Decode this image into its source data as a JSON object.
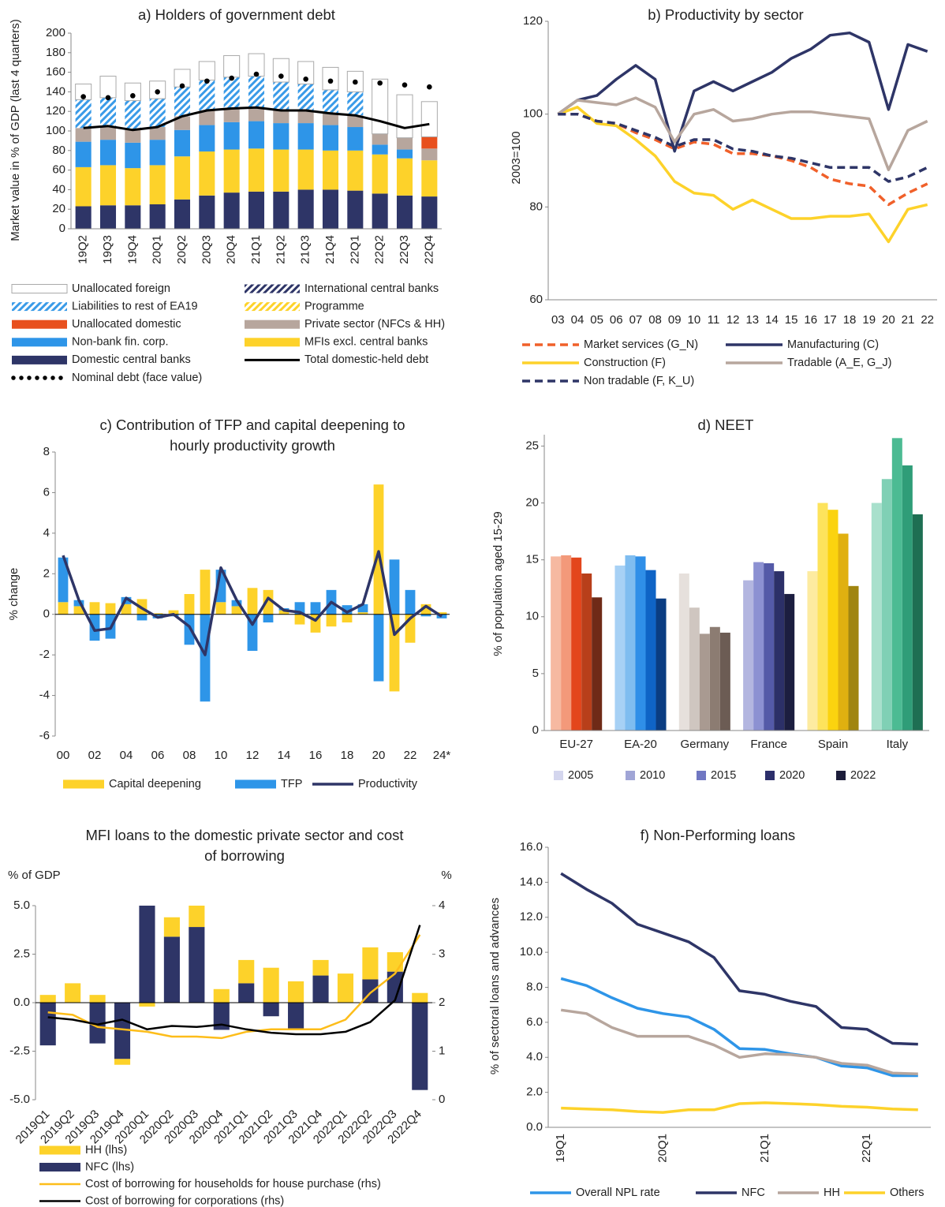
{
  "chart_data": [
    {
      "type": "bar",
      "title": "a) Holders of government debt",
      "ylabel": "Market value in % of GDP (last 4 quarters)",
      "categories": [
        "19Q2",
        "19Q3",
        "19Q4",
        "20Q1",
        "20Q2",
        "20Q3",
        "20Q4",
        "21Q1",
        "21Q2",
        "21Q3",
        "21Q4",
        "22Q1",
        "22Q2",
        "22Q3",
        "22Q4"
      ],
      "ylim": [
        0,
        200
      ],
      "yticks": [
        0,
        20,
        40,
        60,
        80,
        100,
        120,
        140,
        160,
        180,
        200
      ],
      "series": [
        {
          "name": "Unallocated foreign",
          "kind": "bar",
          "color": "#ffffff",
          "values": [
            16,
            22,
            18,
            18,
            18,
            19,
            22,
            23,
            24,
            23,
            23,
            21,
            56,
            44,
            36
          ]
        },
        {
          "name": "International central banks",
          "kind": "bar",
          "color": "#2e3567",
          "pattern": true,
          "values": [
            0,
            0,
            0,
            0,
            0,
            0,
            0,
            0,
            0,
            0,
            0,
            0,
            0,
            0,
            0
          ]
        },
        {
          "name": "Liabilities to rest of EA19",
          "kind": "bar",
          "color": "#3a9be8",
          "pattern": true,
          "values": [
            29,
            29,
            30,
            29,
            30,
            31,
            32,
            32,
            29,
            27,
            24,
            24,
            0,
            0,
            0
          ]
        },
        {
          "name": "Programme",
          "kind": "bar",
          "color": "#fdd22a",
          "pattern": true,
          "values": [
            0,
            0,
            0,
            0,
            0,
            0,
            0,
            0,
            0,
            0,
            0,
            0,
            0,
            0,
            0
          ]
        },
        {
          "name": "Unallocated domestic",
          "kind": "bar",
          "color": "#e8501e",
          "values": [
            0,
            0,
            0,
            0,
            0,
            0,
            0,
            0,
            0,
            0,
            0,
            0,
            0,
            0,
            12
          ]
        },
        {
          "name": "Private sector (NFCs & HH)",
          "kind": "bar",
          "color": "#b7a69d",
          "values": [
            14,
            14,
            13,
            13,
            14,
            15,
            14,
            14,
            13,
            13,
            12,
            12,
            11,
            12,
            12
          ]
        },
        {
          "name": "Non-bank fin. corp.",
          "kind": "bar",
          "color": "#2e95e8",
          "values": [
            26,
            26,
            26,
            26,
            27,
            27,
            28,
            28,
            27,
            27,
            26,
            24,
            10,
            9,
            0
          ]
        },
        {
          "name": "MFIs excl. central banks",
          "kind": "bar",
          "color": "#fdd22a",
          "values": [
            40,
            41,
            38,
            40,
            44,
            45,
            44,
            44,
            43,
            41,
            40,
            41,
            40,
            38,
            37
          ]
        },
        {
          "name": "Domestic central banks",
          "kind": "bar",
          "color": "#2e3567",
          "values": [
            23,
            24,
            24,
            25,
            30,
            34,
            37,
            38,
            38,
            40,
            40,
            39,
            36,
            34,
            33
          ]
        },
        {
          "name": "Total domestic-held debt",
          "kind": "line",
          "color": "#000000",
          "values": [
            103,
            105,
            101,
            104,
            115,
            121,
            123,
            124,
            121,
            121,
            118,
            116,
            110,
            103,
            107
          ]
        },
        {
          "name": "Nominal debt (face value)",
          "kind": "dots",
          "color": "#000000",
          "values": [
            135,
            134,
            136,
            140,
            146,
            151,
            154,
            158,
            156,
            153,
            151,
            150,
            149,
            147,
            145
          ]
        }
      ]
    },
    {
      "type": "line",
      "title": "b) Productivity by sector",
      "ylabel": "2003=100",
      "categories": [
        "03",
        "04",
        "05",
        "06",
        "07",
        "08",
        "09",
        "10",
        "11",
        "12",
        "13",
        "14",
        "15",
        "16",
        "17",
        "18",
        "19",
        "20",
        "21",
        "22"
      ],
      "ylim": [
        60,
        120
      ],
      "yticks": [
        60,
        80,
        100,
        120
      ],
      "series": [
        {
          "name": "Market services (G_N)",
          "color": "#f0602a",
          "dash": true,
          "values": [
            100,
            100,
            98.5,
            98,
            96,
            94.5,
            92.5,
            94,
            93.5,
            91.5,
            91.5,
            91,
            90,
            88.5,
            86,
            85,
            84.5,
            80.5,
            83,
            85
          ]
        },
        {
          "name": "Manufacturing (C)",
          "color": "#2e3567",
          "values": [
            100,
            103,
            104,
            107.5,
            110.5,
            107.5,
            92,
            105,
            107,
            105,
            107,
            109,
            112,
            114,
            117,
            117.5,
            115.5,
            101,
            115,
            113.5
          ]
        },
        {
          "name": "Construction (F)",
          "color": "#fdd22a",
          "values": [
            100,
            101.5,
            98,
            97.5,
            94.5,
            91,
            85.5,
            83,
            82.5,
            79.5,
            81.5,
            79.5,
            77.5,
            77.5,
            78,
            78,
            78.5,
            72.5,
            79.5,
            80.5
          ]
        },
        {
          "name": "Tradable (A_E, G_J)",
          "color": "#b7a69d",
          "values": [
            100,
            103,
            102.5,
            102,
            103.5,
            101.5,
            94,
            100,
            101,
            98.5,
            99,
            100,
            100.5,
            100.5,
            100,
            99.5,
            99,
            88,
            96.5,
            98.5
          ]
        },
        {
          "name": "Non tradable (F, K_U)",
          "color": "#2e3567",
          "dash": true,
          "values": [
            100,
            100,
            98.5,
            98,
            96.5,
            95,
            93,
            94.5,
            94.5,
            92.5,
            92,
            91,
            90.5,
            89.5,
            88.5,
            88.5,
            88.5,
            85.5,
            86.5,
            88.5
          ]
        }
      ]
    },
    {
      "type": "bar",
      "title": "c) Contribution of TFP and capital deepening to hourly productivity growth",
      "ylabel": "% change",
      "categories": [
        "00",
        null,
        "02",
        null,
        "04",
        null,
        "06",
        null,
        "08",
        null,
        "10",
        null,
        "12",
        null,
        "14",
        null,
        "16",
        null,
        "18",
        null,
        "20",
        null,
        "22",
        null,
        "24*"
      ],
      "ylim": [
        -6,
        8
      ],
      "yticks": [
        -6,
        -4,
        -2,
        0,
        2,
        4,
        6,
        8
      ],
      "series": [
        {
          "name": "Capital deepening",
          "kind": "bar",
          "color": "#fdd22a",
          "values": [
            0.6,
            0.4,
            0.6,
            0.55,
            0.5,
            0.75,
            0.05,
            0.2,
            1.0,
            2.2,
            0.6,
            0.4,
            1.3,
            1.2,
            0.2,
            -0.5,
            -0.9,
            -0.6,
            -0.4,
            0.1,
            6.4,
            -3.8,
            -1.4,
            0.5,
            0.1
          ]
        },
        {
          "name": "TFP",
          "kind": "bar",
          "color": "#2e95e8",
          "values": [
            2.2,
            0.3,
            -1.3,
            -1.2,
            0.35,
            -0.3,
            -0.2,
            -0.1,
            -1.5,
            -4.3,
            1.6,
            0.3,
            -1.8,
            -0.4,
            0.1,
            0.6,
            0.6,
            1.2,
            0.45,
            0.4,
            -3.3,
            2.7,
            1.2,
            -0.1,
            -0.2
          ]
        },
        {
          "name": "Productivity",
          "kind": "line",
          "color": "#2e3567",
          "values": [
            2.9,
            0.7,
            -0.8,
            -0.7,
            0.8,
            0.3,
            -0.15,
            0.0,
            -0.6,
            -2.0,
            2.3,
            0.7,
            -0.5,
            0.8,
            0.2,
            0.1,
            -0.3,
            0.6,
            0.1,
            0.5,
            3.1,
            -1.0,
            -0.2,
            0.4,
            -0.1
          ]
        }
      ]
    },
    {
      "type": "grouped_bar",
      "title": "d) NEET",
      "ylabel": "% of population aged 15-29",
      "categories": [
        "EU-27",
        "EA-20",
        "Germany",
        "France",
        "Spain",
        "Italy"
      ],
      "ylim": [
        0,
        26
      ],
      "yticks": [
        0,
        5,
        10,
        15,
        20,
        25
      ],
      "series": [
        {
          "name": "2005",
          "color": "#d4d6ee",
          "colors": [
            "#f6b9a1",
            "#a7d1f5",
            "#e6e0dc",
            "#b3b6e0",
            "#fdeba0",
            "#a8e0cc"
          ],
          "values": [
            15.3,
            14.5,
            13.8,
            13.2,
            14.0,
            20.0
          ]
        },
        {
          "name": "2010",
          "color": "#a0a5d6",
          "colors": [
            "#f3997a",
            "#7fbdf0",
            "#cfc6c0",
            "#8c91d2",
            "#fde35c",
            "#80d0b5"
          ],
          "values": [
            15.4,
            15.4,
            10.8,
            14.8,
            20.0,
            22.1
          ]
        },
        {
          "name": "2015",
          "color": "#7077c2",
          "colors": [
            "#e3461c",
            "#2f8fe8",
            "#a99a91",
            "#545aa8",
            "#fbd30f",
            "#4cbb93"
          ],
          "values": [
            15.2,
            15.3,
            8.5,
            14.7,
            19.4,
            25.7
          ]
        },
        {
          "name": "2020",
          "color": "#2c2f6b",
          "colors": [
            "#b83f1a",
            "#0f64c6",
            "#8c7c72",
            "#2c3068",
            "#e0b010",
            "#2f9d78"
          ],
          "values": [
            13.8,
            14.1,
            9.1,
            14.0,
            17.3,
            23.3
          ]
        },
        {
          "name": "2022",
          "color": "#1c1d3a",
          "colors": [
            "#6f2a17",
            "#0a3d82",
            "#6c5c54",
            "#1c1e40",
            "#a08510",
            "#1e6f53"
          ],
          "values": [
            11.7,
            11.6,
            8.6,
            12.0,
            12.7,
            19.0
          ]
        }
      ]
    },
    {
      "type": "bar",
      "title": "MFI loans to the domestic private sector and cost of borrowing",
      "ylabel": "% of GDP",
      "y2label": "%",
      "categories": [
        "2019Q1",
        "2019Q2",
        "2019Q3",
        "2019Q4",
        "2020Q1",
        "2020Q2",
        "2020Q3",
        "2020Q4",
        "2021Q1",
        "2021Q2",
        "2021Q3",
        "2021Q4",
        "2022Q1",
        "2022Q2",
        "2022Q3",
        "2022Q4"
      ],
      "ylim": [
        -5,
        5
      ],
      "yticks": [
        {
          "value": -5,
          "label": "-5.0"
        },
        {
          "value": -2.5,
          "label": "-2.5"
        },
        {
          "value": 0,
          "label": "0.0"
        },
        {
          "value": 2.5,
          "label": "2.5"
        },
        {
          "value": 5,
          "label": "5.0"
        }
      ],
      "y2lim": [
        0,
        4
      ],
      "y2ticks": [
        0,
        1,
        2,
        3,
        4
      ],
      "series": [
        {
          "name": "HH (lhs)",
          "kind": "bar",
          "color": "#fdd22a",
          "values": [
            0.4,
            1.0,
            0.4,
            -0.3,
            -0.2,
            1.0,
            1.1,
            0.7,
            1.2,
            1.8,
            1.1,
            0.8,
            1.5,
            1.65,
            1.0,
            0.5
          ]
        },
        {
          "name": "NFC (lhs)",
          "kind": "bar",
          "color": "#2e3567",
          "values": [
            -2.2,
            0.0,
            -2.1,
            -2.9,
            5.0,
            3.4,
            3.9,
            -1.4,
            1.0,
            -0.7,
            -1.4,
            1.4,
            0.0,
            1.2,
            1.6,
            -4.5
          ]
        },
        {
          "name": "Cost of borrowing for households for house purchase (rhs)",
          "kind": "line",
          "axis": "y2",
          "color": "#fdbd1a",
          "values": [
            1.8,
            1.75,
            1.5,
            1.45,
            1.4,
            1.3,
            1.3,
            1.27,
            1.4,
            1.45,
            1.45,
            1.45,
            1.65,
            2.2,
            2.6,
            3.4
          ]
        },
        {
          "name": "Cost of borrowing for corporations (rhs)",
          "kind": "line",
          "axis": "y2",
          "color": "#000000",
          "values": [
            1.7,
            1.65,
            1.55,
            1.65,
            1.45,
            1.52,
            1.5,
            1.55,
            1.45,
            1.38,
            1.35,
            1.35,
            1.4,
            1.6,
            2.05,
            3.6
          ]
        }
      ]
    },
    {
      "type": "line",
      "title": "f) Non-Performing loans",
      "ylabel": "% of sectoral loans and advances",
      "categories": [
        "19Q1",
        null,
        null,
        null,
        "20Q1",
        null,
        null,
        null,
        "21Q1",
        null,
        null,
        null,
        "22Q1",
        null,
        null
      ],
      "ylim": [
        0,
        16
      ],
      "yticks": [
        {
          "value": 0,
          "label": "0.0"
        },
        {
          "value": 2,
          "label": "2.0"
        },
        {
          "value": 4,
          "label": "4.0"
        },
        {
          "value": 6,
          "label": "6.0"
        },
        {
          "value": 8,
          "label": "8.0"
        },
        {
          "value": 10,
          "label": "10.0"
        },
        {
          "value": 12,
          "label": "12.0"
        },
        {
          "value": 14,
          "label": "14.0"
        },
        {
          "value": 16,
          "label": "16.0"
        }
      ],
      "series": [
        {
          "name": "Overall NPL rate",
          "color": "#2e95e8",
          "values": [
            8.5,
            8.1,
            7.4,
            6.8,
            6.5,
            6.3,
            5.6,
            4.5,
            4.45,
            4.2,
            4.0,
            3.5,
            3.4,
            2.95,
            2.95
          ]
        },
        {
          "name": "NFC",
          "color": "#2e3567",
          "values": [
            14.5,
            13.6,
            12.8,
            11.6,
            11.1,
            10.6,
            9.7,
            7.8,
            7.6,
            7.2,
            6.9,
            5.7,
            5.6,
            4.8,
            4.75
          ]
        },
        {
          "name": "HH",
          "color": "#b7a69d",
          "values": [
            6.7,
            6.5,
            5.7,
            5.2,
            5.2,
            5.2,
            4.7,
            4.0,
            4.2,
            4.15,
            4.0,
            3.65,
            3.55,
            3.1,
            3.05
          ]
        },
        {
          "name": "Others",
          "color": "#fdd22a",
          "values": [
            1.1,
            1.05,
            1.0,
            0.9,
            0.85,
            1.0,
            1.0,
            1.35,
            1.4,
            1.35,
            1.3,
            1.2,
            1.15,
            1.05,
            1.0
          ]
        }
      ]
    }
  ]
}
